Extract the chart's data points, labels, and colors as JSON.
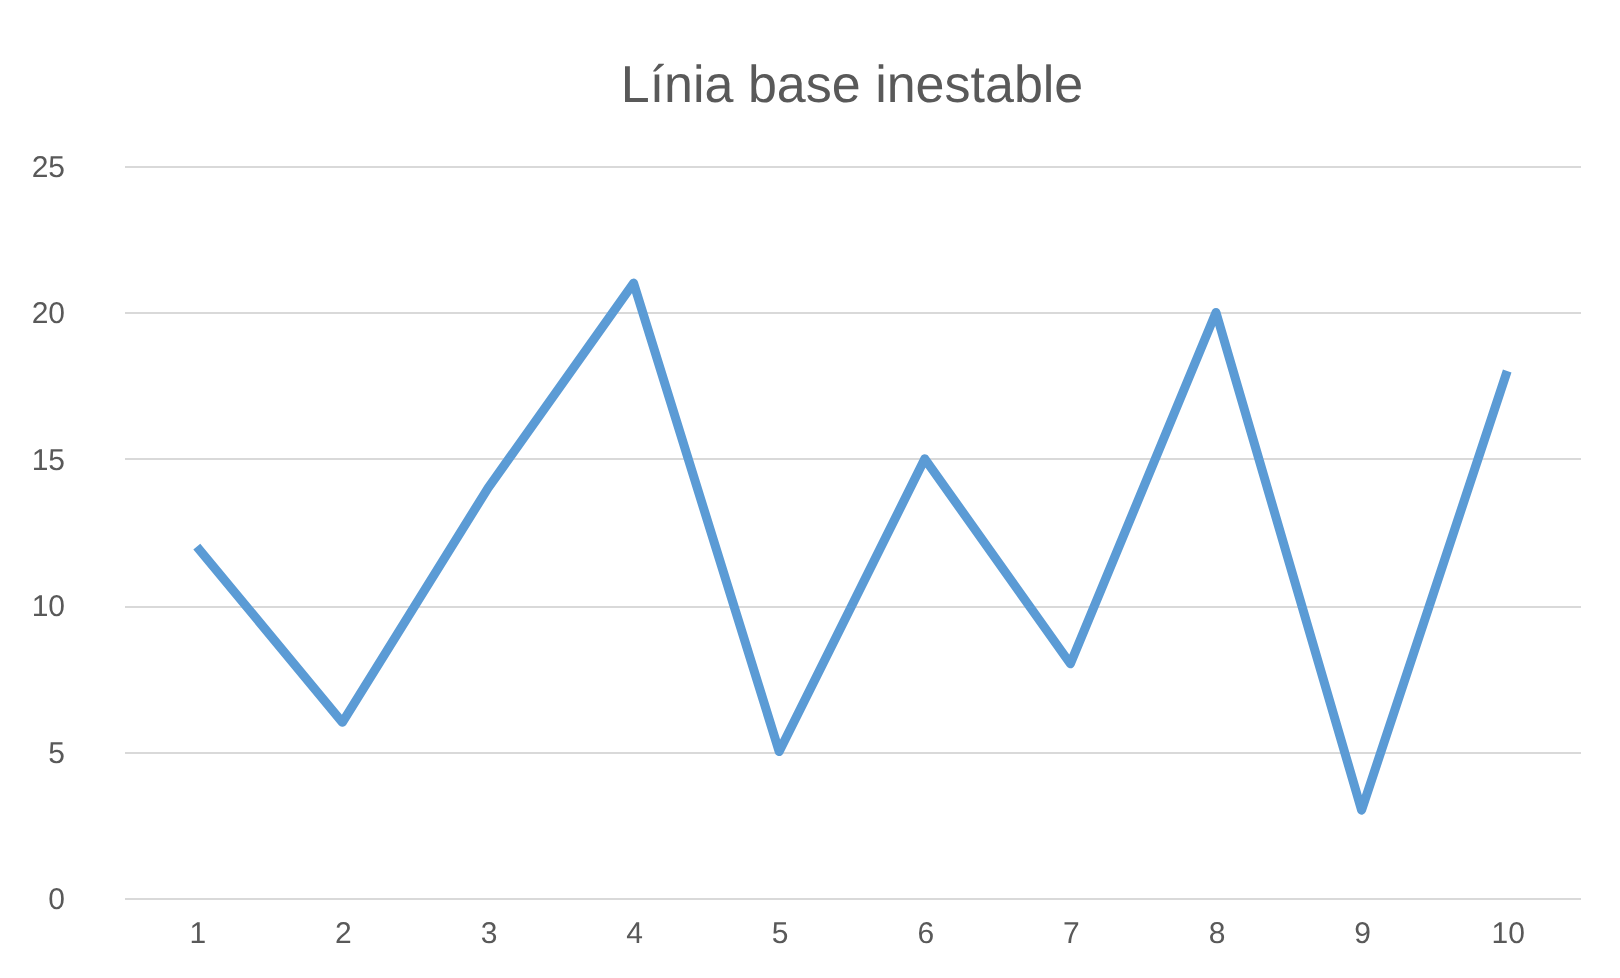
{
  "chart_data": {
    "type": "line",
    "title": "Línia base inestable",
    "categories": [
      "1",
      "2",
      "3",
      "4",
      "5",
      "6",
      "7",
      "8",
      "9",
      "10"
    ],
    "series": [
      {
        "color": "#5b9bd5",
        "values": [
          12,
          6,
          14,
          21,
          5,
          15,
          8,
          20,
          3,
          18
        ]
      }
    ],
    "ylim": [
      0,
      25
    ],
    "yticks": [
      0,
      5,
      10,
      15,
      20,
      25
    ],
    "grid": "y",
    "legend": false,
    "marker": "none",
    "line_style": "solid"
  }
}
